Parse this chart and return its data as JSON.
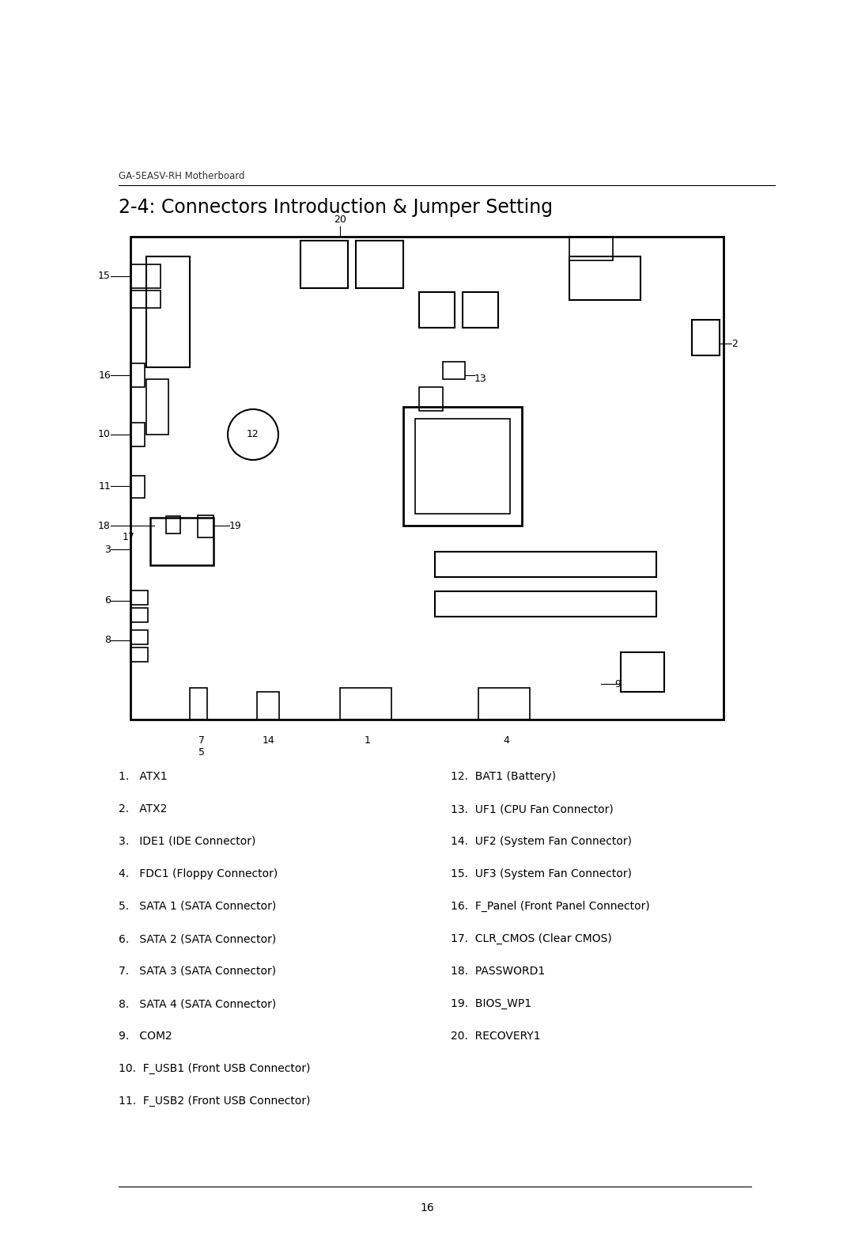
{
  "page_header": "GA-5EASV-RH Motherboard",
  "title": "2-4: Connectors Introduction & Jumper Setting",
  "footer_text": "16",
  "background_color": "#ffffff",
  "text_color": "#000000",
  "left_items": [
    "1.   ATX1",
    "2.   ATX2",
    "3.   IDE1 (IDE Connector)",
    "4.   FDC1 (Floppy Connector)",
    "5.   SATA 1 (SATA Connector)",
    "6.   SATA 2 (SATA Connector)",
    "7.   SATA 3 (SATA Connector)",
    "8.   SATA 4 (SATA Connector)",
    "9.   COM2",
    "10.  F_USB1 (Front USB Connector)",
    "11.  F_USB2 (Front USB Connector)"
  ],
  "right_items": [
    "12.  BAT1 (Battery)",
    "13.  UF1 (CPU Fan Connector)",
    "14.  UF2 (System Fan Connector)",
    "15.  UF3 (System Fan Connector)",
    "16.  F_Panel (Front Panel Connector)",
    "17.  CLR_CMOS (Clear CMOS)",
    "18.  PASSWORD1",
    "19.  BIOS_WP1",
    "20.  RECOVERY1"
  ]
}
